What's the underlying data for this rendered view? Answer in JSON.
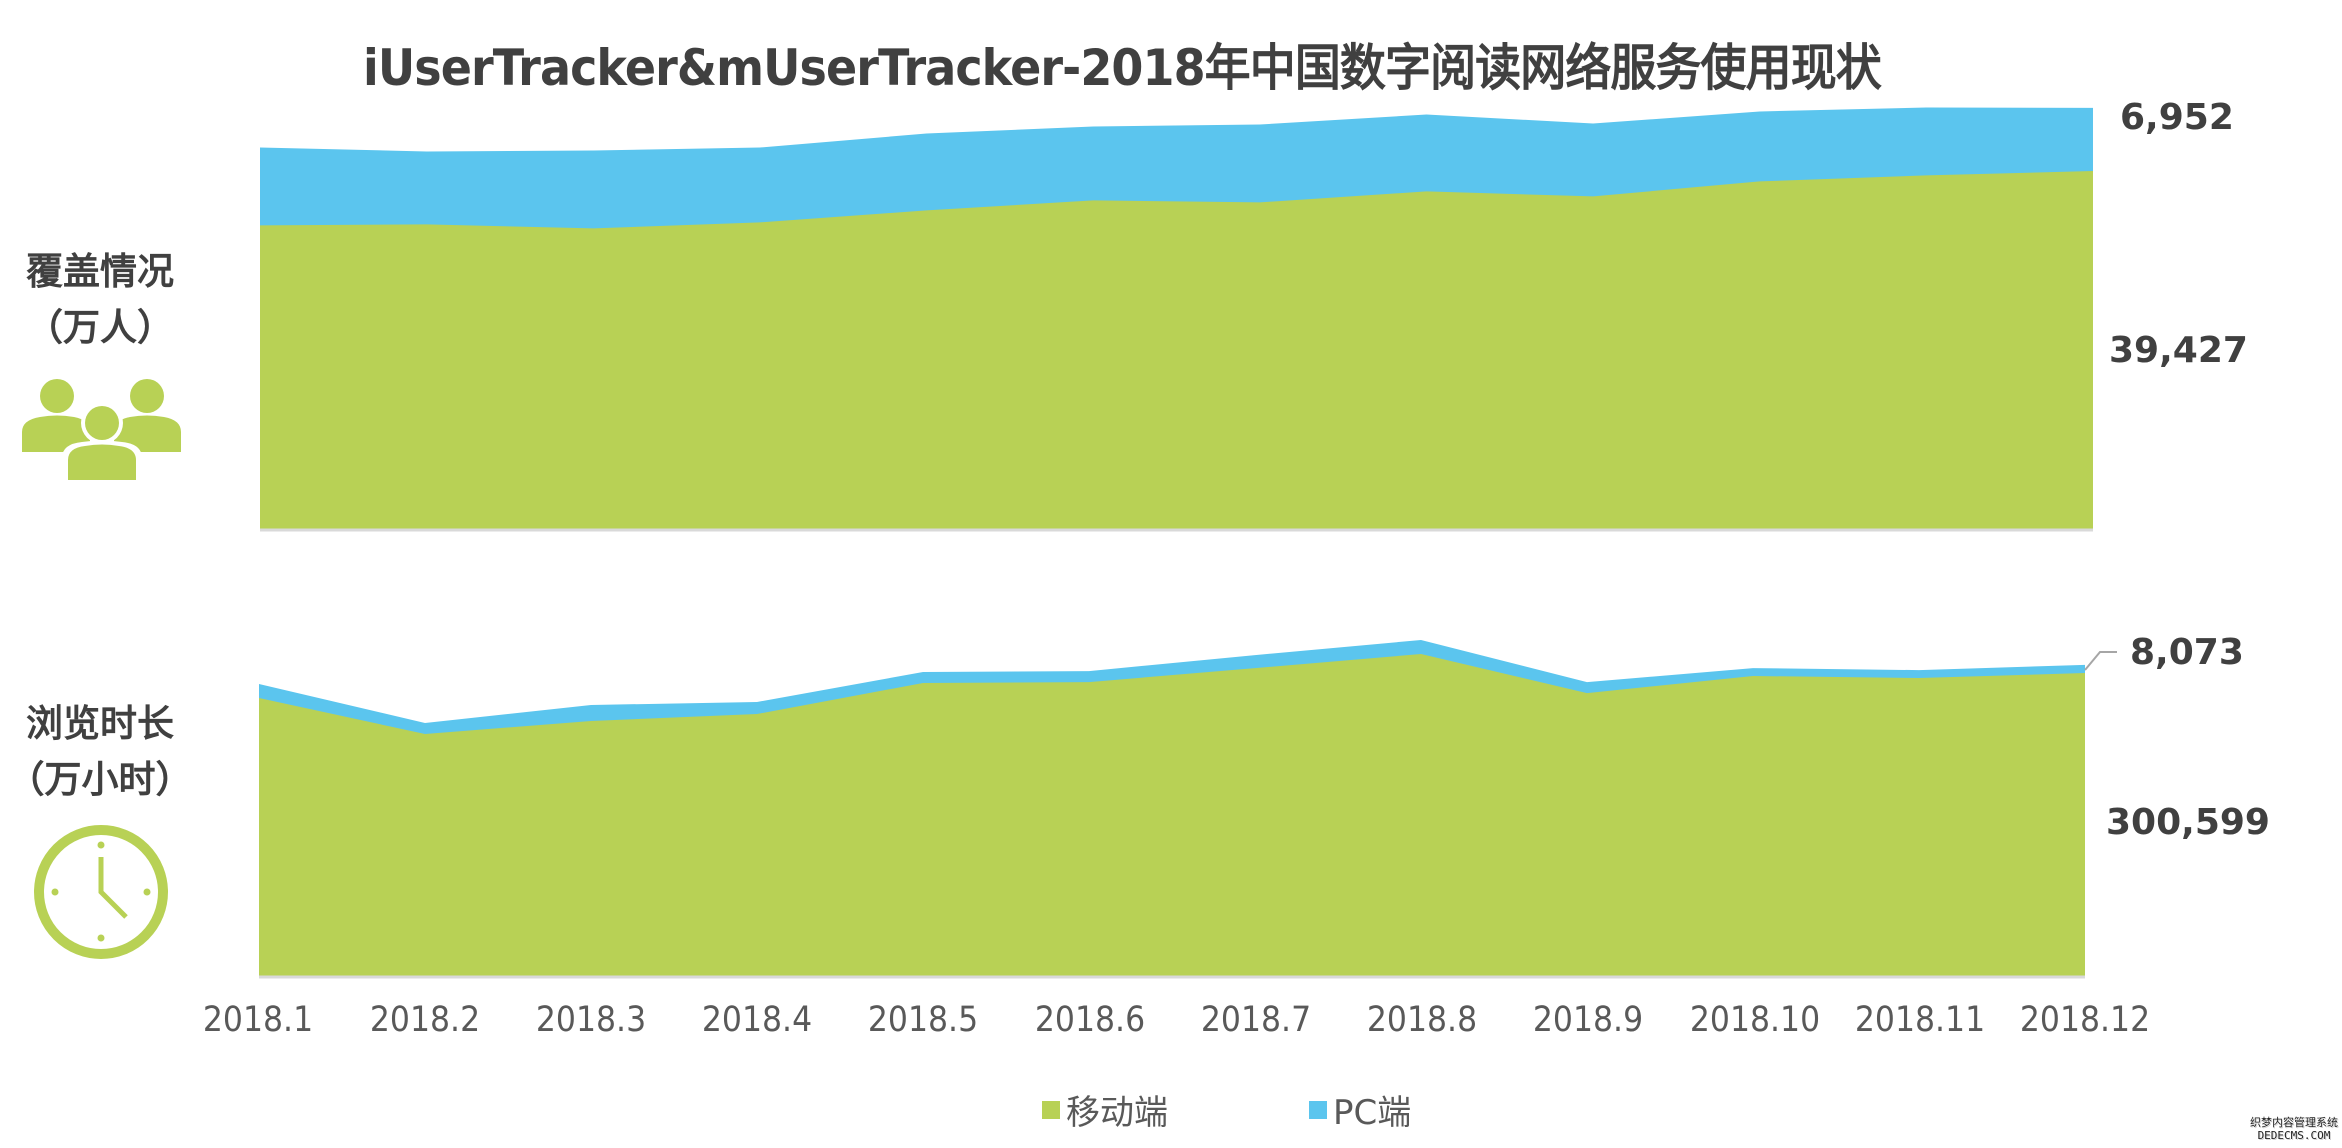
{
  "title": "iUserTracker&mUserTracker-2018年中国数字阅读网络服务使用现状",
  "panels": {
    "coverage": {
      "label_line1": "覆盖情况",
      "label_line2": "（万人）",
      "icon": "people-group-icon"
    },
    "duration": {
      "label_line1": "浏览时长",
      "label_line2": "（万小时）",
      "icon": "clock-icon"
    }
  },
  "colors": {
    "mobile": "#b8d155",
    "pc": "#5bc5ee",
    "text": "#404040",
    "axis": "#d9d9d9",
    "icon": "#b8d155"
  },
  "legend": [
    {
      "label": "移动端",
      "color": "#b8d155"
    },
    {
      "label": "PC端",
      "color": "#5bc5ee"
    }
  ],
  "watermark": {
    "line1": "织梦内容管理系统",
    "line2": "DEDECMS.COM"
  },
  "chart_data": [
    {
      "type": "area",
      "stacked": true,
      "title": "覆盖情况（万人）",
      "xlabel": "",
      "ylabel": "万人",
      "categories": [
        "2018.1",
        "2018.2",
        "2018.3",
        "2018.4",
        "2018.5",
        "2018.6",
        "2018.7",
        "2018.8",
        "2018.9",
        "2018.10",
        "2018.11",
        "2018.12"
      ],
      "series": [
        {
          "name": "移动端",
          "values": [
            33440,
            33550,
            33110,
            33770,
            35090,
            36190,
            35970,
            37180,
            36630,
            38280,
            38940,
            39427
          ]
        },
        {
          "name": "PC端",
          "values": [
            8580,
            8030,
            8580,
            8250,
            8470,
            8140,
            8580,
            8470,
            8030,
            7700,
            7480,
            6952
          ]
        }
      ],
      "end_labels": {
        "移动端": "39,427",
        "PC端": "6,952"
      },
      "grid": false,
      "legend_position": "bottom"
    },
    {
      "type": "area",
      "stacked": true,
      "title": "浏览时长（万小时）",
      "xlabel": "",
      "ylabel": "万小时",
      "categories": [
        "2018.1",
        "2018.2",
        "2018.3",
        "2018.4",
        "2018.5",
        "2018.6",
        "2018.7",
        "2018.8",
        "2018.9",
        "2018.10",
        "2018.11",
        "2018.12"
      ],
      "series": [
        {
          "name": "移动端",
          "values": [
            275800,
            240100,
            253000,
            259900,
            290700,
            291600,
            305500,
            319400,
            280700,
            297600,
            295600,
            300599
          ]
        },
        {
          "name": "PC端",
          "values": [
            13900,
            10900,
            15900,
            11900,
            10900,
            10900,
            12900,
            13900,
            10900,
            7900,
            7900,
            8073
          ]
        }
      ],
      "end_labels": {
        "移动端": "300,599",
        "PC端": "8,073"
      },
      "grid": false,
      "legend_position": "bottom"
    }
  ]
}
